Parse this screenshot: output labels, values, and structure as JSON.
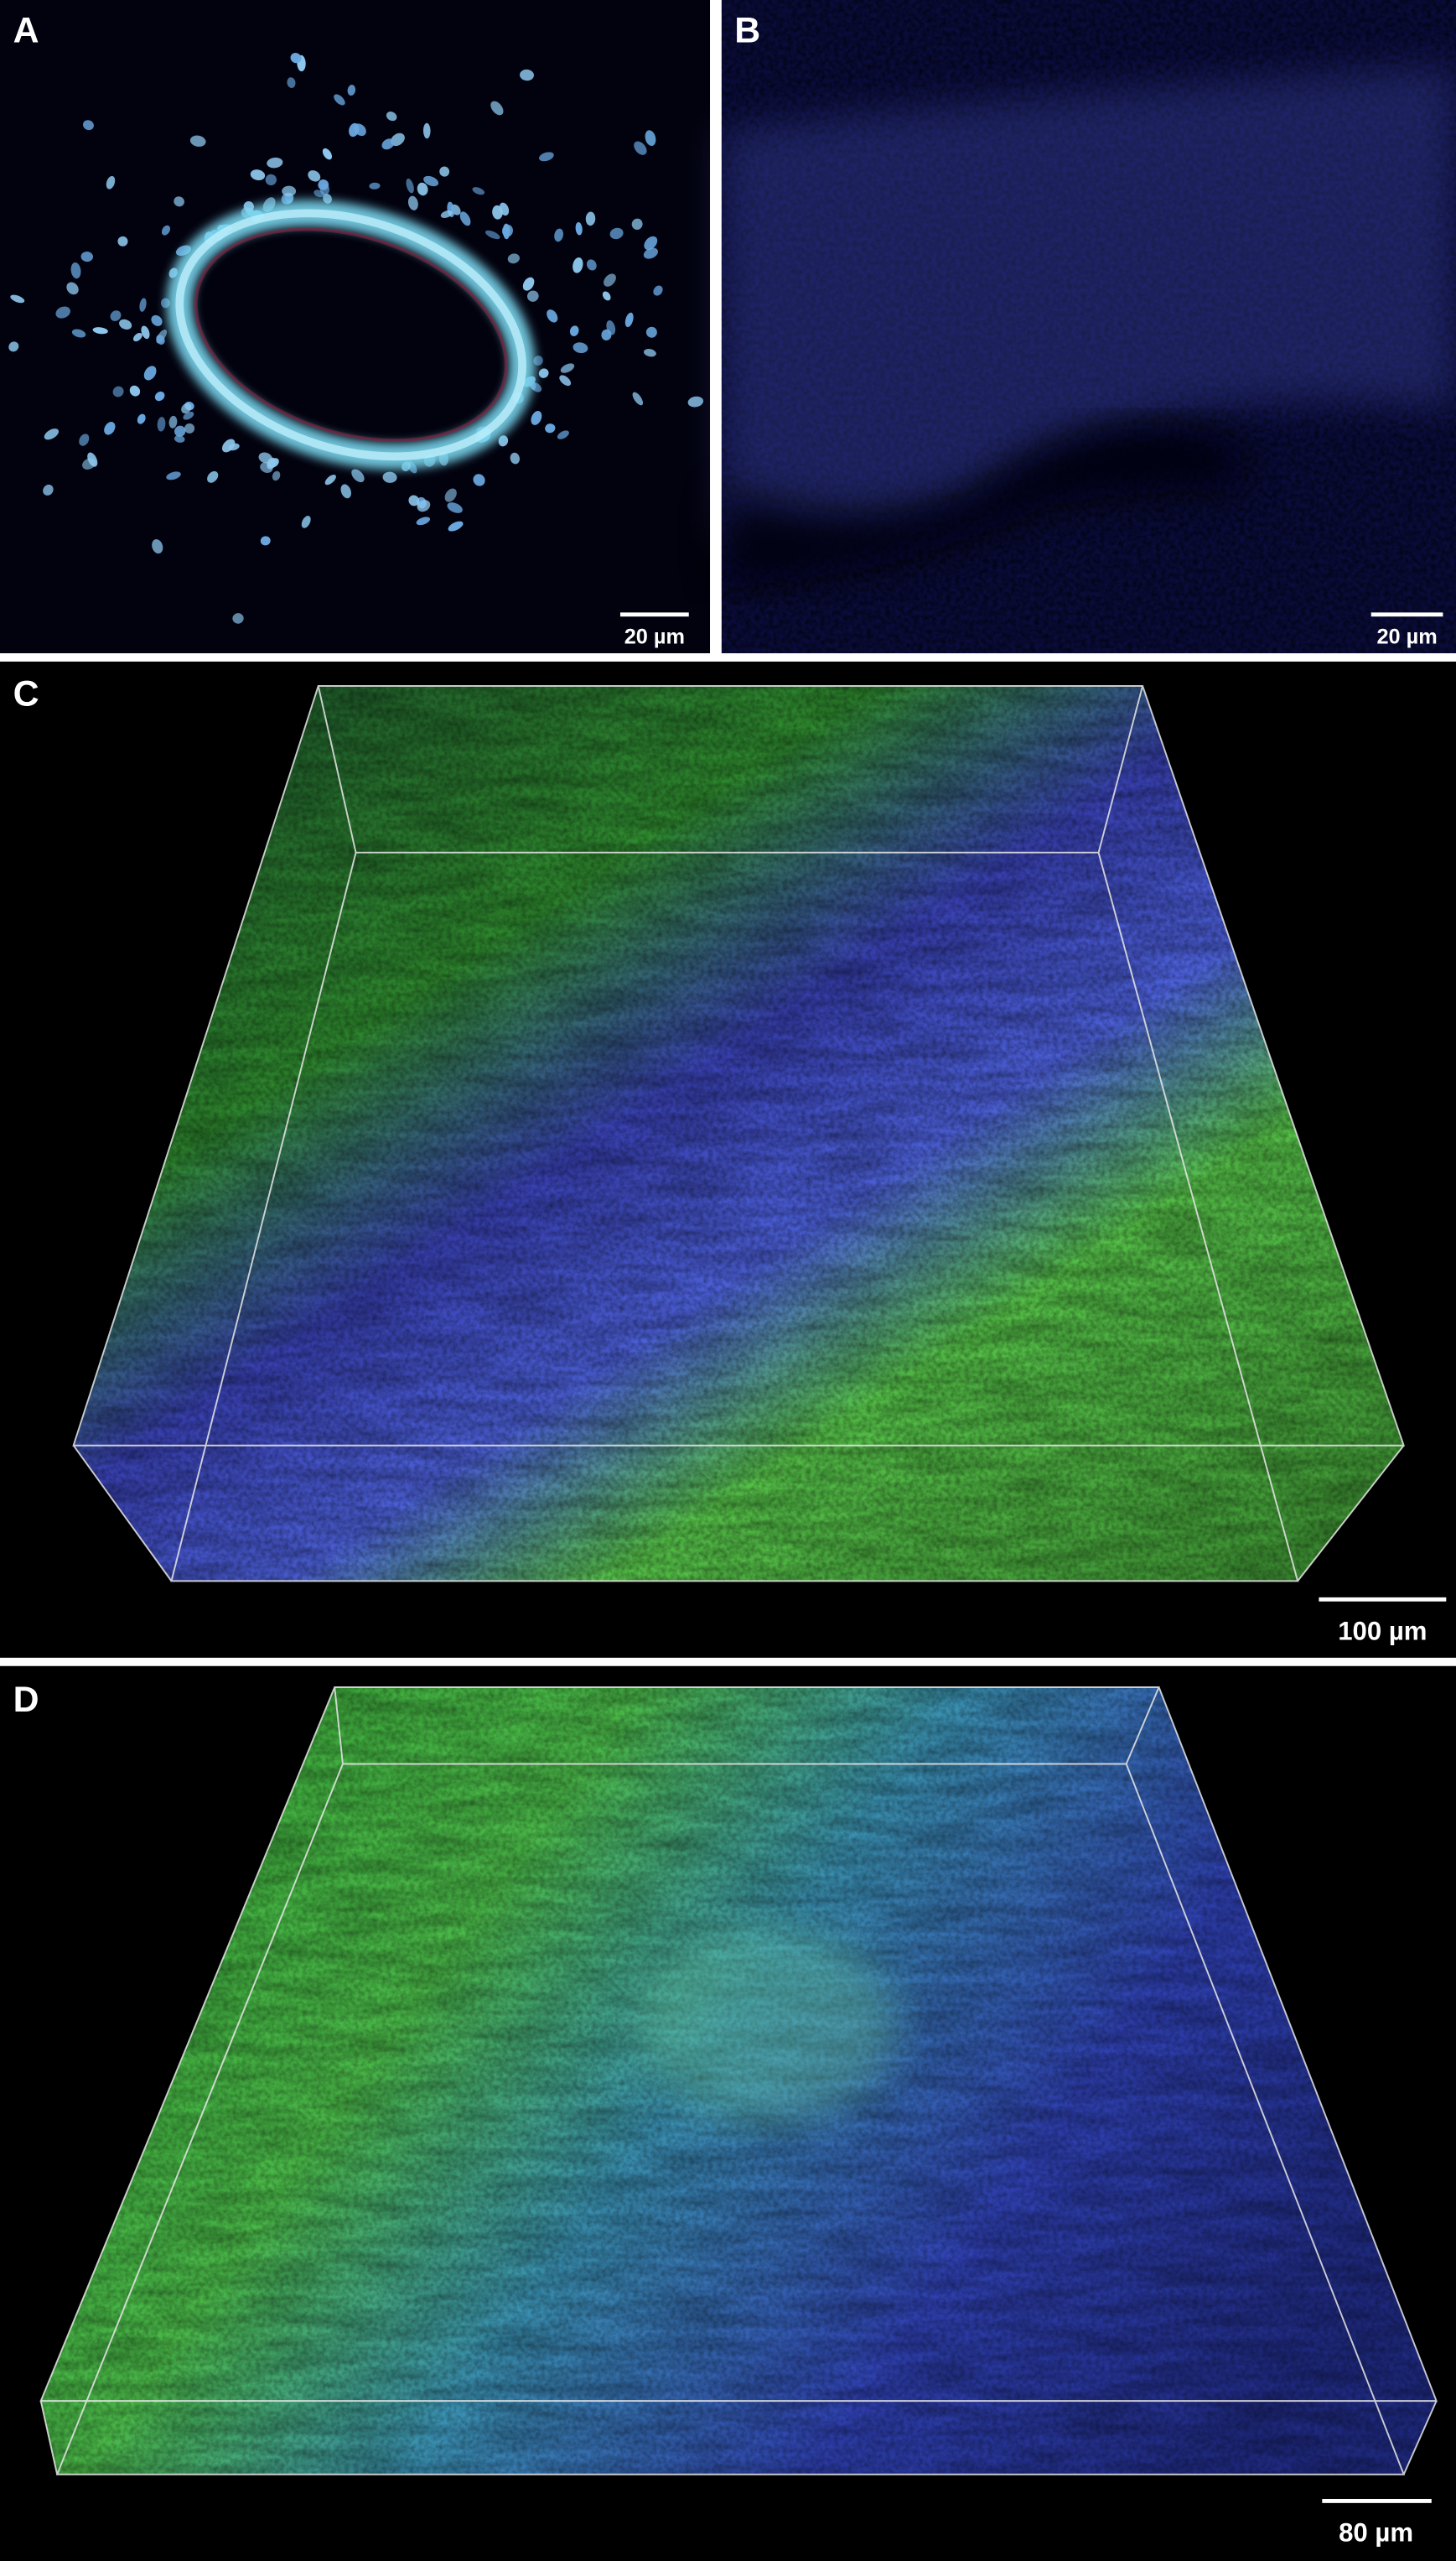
{
  "panels": [
    {
      "label": "A",
      "scale_bar": "20 µm"
    },
    {
      "label": "B",
      "scale_bar": "20 µm"
    },
    {
      "label": "C",
      "scale_bar": "100 µm"
    },
    {
      "label": "D",
      "scale_bar": "80 µm"
    }
  ]
}
